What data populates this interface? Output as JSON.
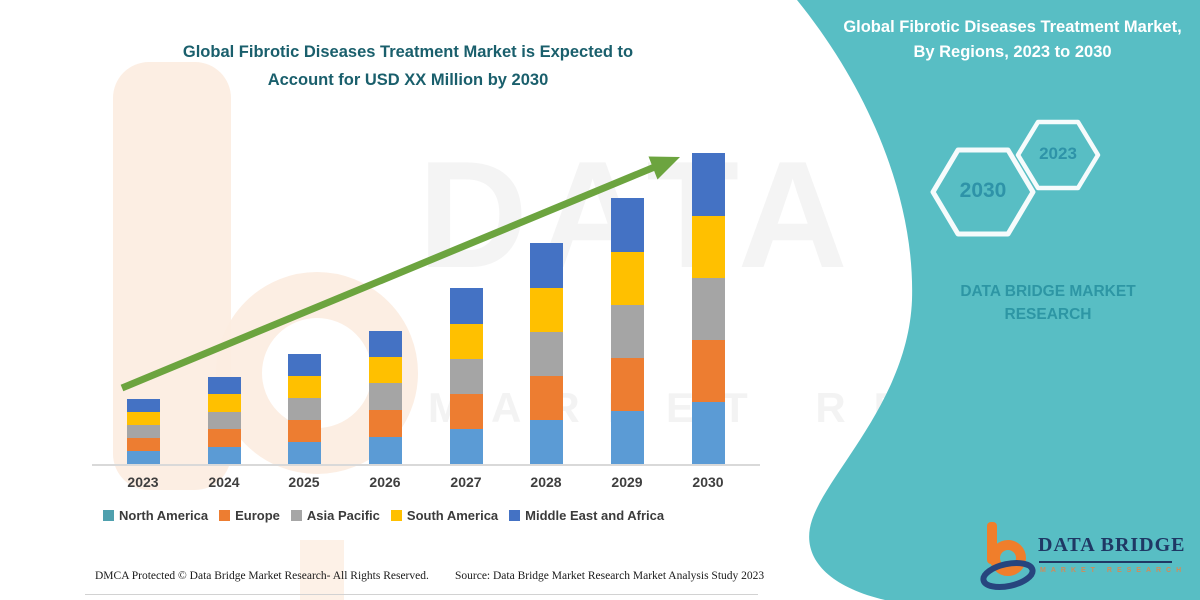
{
  "left": {
    "title": "Global Fibrotic Diseases Treatment Market is Expected to Account for USD XX Million by 2030",
    "footer_left": "DMCA Protected © Data Bridge Market Research- All Rights Reserved.",
    "footer_right": "Source: Data Bridge Market Research Market Analysis Study 2023"
  },
  "chart_data": {
    "type": "bar",
    "stacked": true,
    "title": "Global Fibrotic Diseases Treatment Market is Expected to Account for USD XX Million by 2030",
    "categories": [
      "2023",
      "2024",
      "2025",
      "2026",
      "2027",
      "2028",
      "2029",
      "2030"
    ],
    "series": [
      {
        "name": "North America",
        "color": "#5B9BD5",
        "legend_color": "#4FA0AE",
        "values": [
          14,
          18,
          23,
          28,
          36,
          45,
          54,
          63
        ]
      },
      {
        "name": "Europe",
        "color": "#ED7D31",
        "legend_color": "#ED7D31",
        "values": [
          13,
          18,
          22,
          27,
          35,
          44,
          53,
          62
        ]
      },
      {
        "name": "Asia Pacific",
        "color": "#A5A5A5",
        "legend_color": "#A6A6A6",
        "values": [
          13,
          17,
          22,
          27,
          35,
          44,
          53,
          62
        ]
      },
      {
        "name": "South America",
        "color": "#FFC000",
        "legend_color": "#FFC000",
        "values": [
          13,
          18,
          22,
          26,
          35,
          44,
          53,
          62
        ]
      },
      {
        "name": "Middle East and Africa",
        "color": "#4472C4",
        "legend_color": "#4472C4",
        "values": [
          13,
          17,
          22,
          26,
          36,
          45,
          54,
          63
        ]
      }
    ],
    "value_note": "relative stacked heights (axis unlabeled, USD XX Million)",
    "ylim": [
      0,
      335
    ],
    "grid": false,
    "legend_position": "bottom",
    "trend_arrow": true
  },
  "right_panel": {
    "bg_color": "#58BEC4",
    "heading": "Global Fibrotic Diseases Treatment Market, By Regions, 2023 to 2030",
    "hexagons": [
      {
        "label": "2030"
      },
      {
        "label": "2023"
      }
    ],
    "brand_text": "DATA BRIDGE MARKET RESEARCH",
    "logo": {
      "name": "DATA BRIDGE",
      "subtext": "MARKET RESEARCH"
    }
  },
  "watermark": {
    "text_large": "DATA BRIDGE",
    "text_small": "MARKET RESEARCH"
  },
  "colors": {
    "accent_teal": "#58BEC4",
    "arrow_green": "#6CA43F",
    "title_teal": "#1A5F6C",
    "axis_line": "#D9D9D9"
  }
}
